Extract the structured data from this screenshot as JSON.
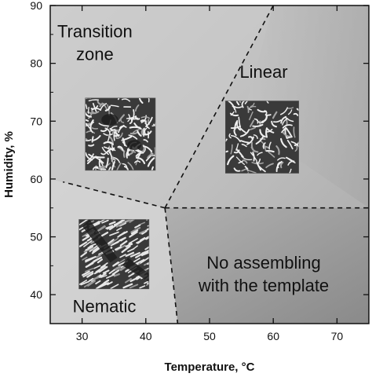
{
  "chart_data": {
    "type": "phase-diagram",
    "xlabel": "Temperature, °C",
    "ylabel": "Humidity, %",
    "xlim": [
      25,
      75
    ],
    "ylim": [
      35,
      90
    ],
    "xticks": [
      30,
      40,
      50,
      60,
      70
    ],
    "yticks": [
      40,
      50,
      60,
      70,
      80,
      90
    ],
    "triple_point": [
      43,
      55
    ],
    "boundaries": [
      {
        "name": "transition-linear",
        "from": [
          43,
          55
        ],
        "to": [
          60,
          90
        ]
      },
      {
        "name": "transition-nematic",
        "from": [
          43,
          55
        ],
        "to": [
          27,
          59.5
        ]
      },
      {
        "name": "nematic-no-assembling",
        "from": [
          43,
          55
        ],
        "to": [
          45,
          35
        ]
      },
      {
        "name": "linear-no-assembling",
        "from": [
          43,
          55
        ],
        "to": [
          75,
          55
        ]
      }
    ],
    "regions": [
      {
        "id": "transition",
        "lines": [
          "Transition",
          "zone"
        ],
        "x": 32,
        "y": 84.5
      },
      {
        "id": "linear",
        "lines": [
          "Linear"
        ],
        "x": 58.5,
        "y": 77.5
      },
      {
        "id": "no-assembling",
        "lines": [
          "No assembling",
          "with the template"
        ],
        "x": 58.5,
        "y": 44.5
      },
      {
        "id": "nematic",
        "lines": [
          "Nematic"
        ],
        "x": 33.5,
        "y": 37
      }
    ],
    "micrographs": [
      {
        "region": "transition",
        "x0": 30.5,
        "x1": 41.5,
        "y0": 61.5,
        "y1": 74,
        "seed": 11
      },
      {
        "region": "linear",
        "x0": 52.5,
        "x1": 64,
        "y0": 61,
        "y1": 73.5,
        "seed": 23
      },
      {
        "region": "nematic",
        "x0": 29.5,
        "x1": 40.5,
        "y0": 41,
        "y1": 53,
        "seed": 37
      }
    ],
    "grid": false,
    "legend": "none"
  }
}
